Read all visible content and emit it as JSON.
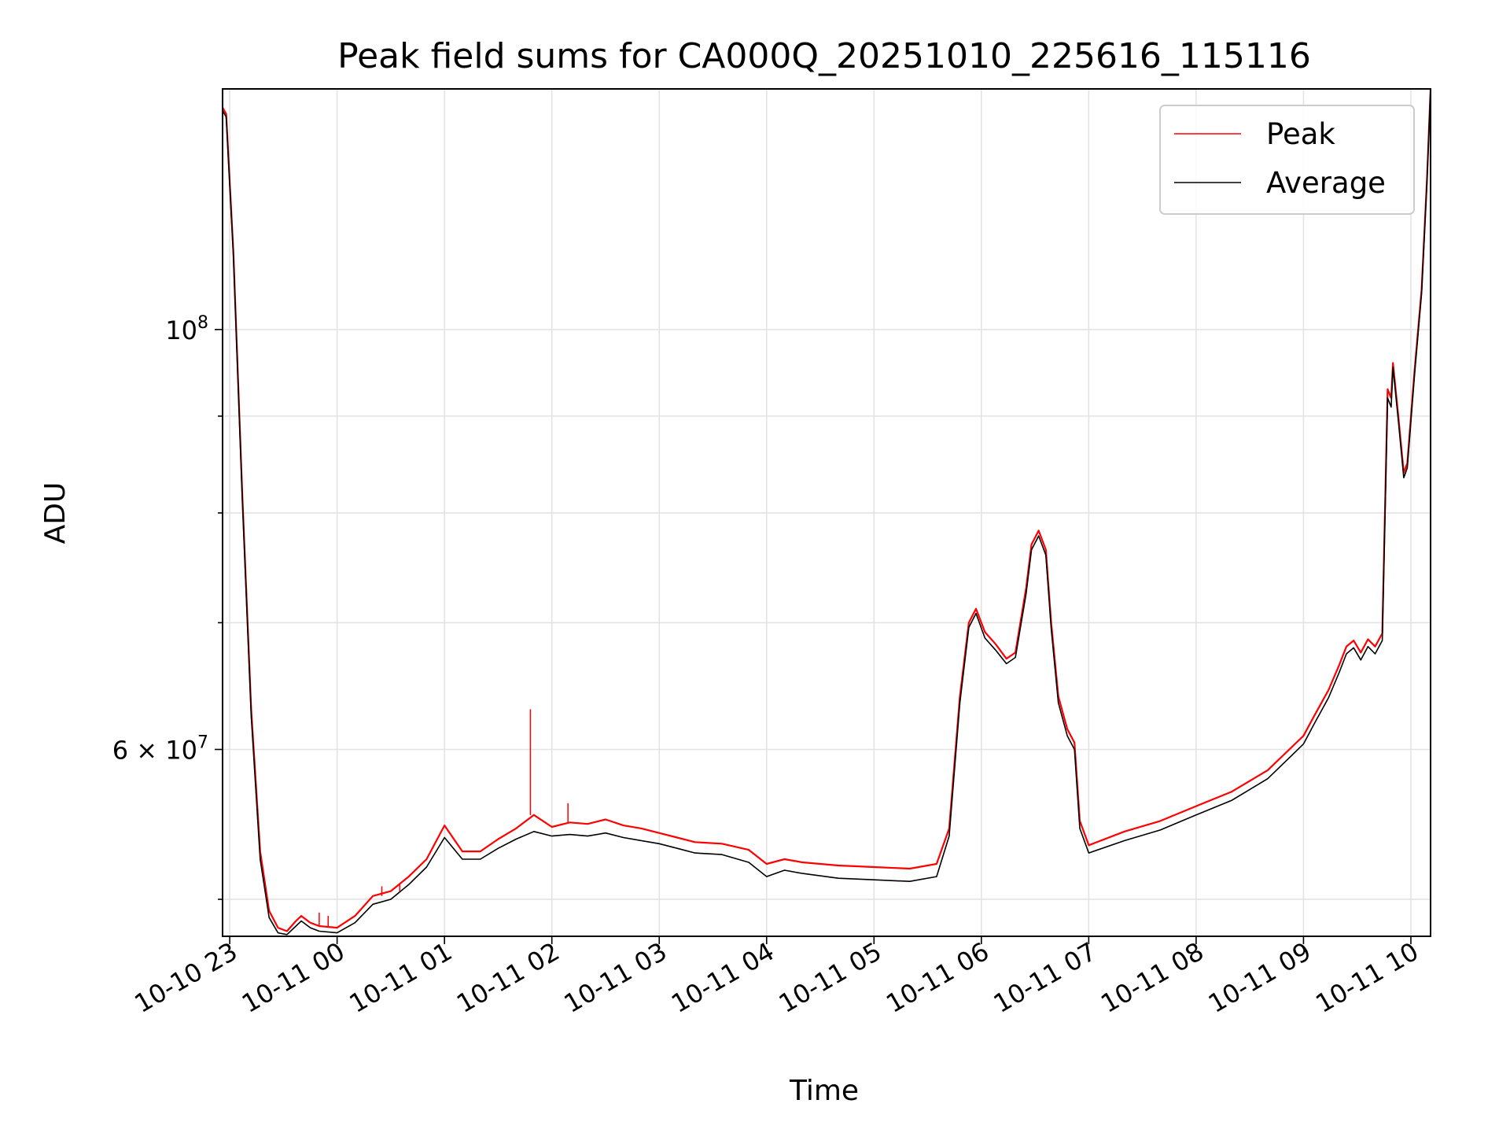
{
  "chart_data": {
    "type": "line",
    "title": "Peak field sums for CA000Q_20251010_225616_115116",
    "xlabel": "Time",
    "ylabel": "ADU",
    "y_scale": "log",
    "grid": true,
    "legend_position": "top-right",
    "x_range": [
      "2025-10-10 22:56",
      "2025-10-11 10:11"
    ],
    "y_range": [
      47800000,
      134000000
    ],
    "x_ticks": [
      {
        "t": "2025-10-10 23:00",
        "label": "10-10 23"
      },
      {
        "t": "2025-10-11 00:00",
        "label": "10-11 00"
      },
      {
        "t": "2025-10-11 01:00",
        "label": "10-11 01"
      },
      {
        "t": "2025-10-11 02:00",
        "label": "10-11 02"
      },
      {
        "t": "2025-10-11 03:00",
        "label": "10-11 03"
      },
      {
        "t": "2025-10-11 04:00",
        "label": "10-11 04"
      },
      {
        "t": "2025-10-11 05:00",
        "label": "10-11 05"
      },
      {
        "t": "2025-10-11 06:00",
        "label": "10-11 06"
      },
      {
        "t": "2025-10-11 07:00",
        "label": "10-11 07"
      },
      {
        "t": "2025-10-11 08:00",
        "label": "10-11 08"
      },
      {
        "t": "2025-10-11 09:00",
        "label": "10-11 09"
      },
      {
        "t": "2025-10-11 10:00",
        "label": "10-11 10"
      }
    ],
    "y_major_ticks": [
      {
        "value": 60000000,
        "label": "6 × 10⁷",
        "base": "6 × 10",
        "exp": "7"
      },
      {
        "value": 100000000,
        "label": "10⁸",
        "base": "10",
        "exp": "8"
      }
    ],
    "y_minor_ticks": [
      50000000,
      70000000,
      80000000,
      90000000
    ],
    "series": [
      {
        "name": "Peak",
        "color": "#ff0000",
        "points": [
          [
            "2025-10-10 22:56",
            131000000
          ],
          [
            "2025-10-10 22:58",
            130000000
          ],
          [
            "2025-10-10 23:02",
            110000000
          ],
          [
            "2025-10-10 23:07",
            82000000
          ],
          [
            "2025-10-10 23:12",
            63000000
          ],
          [
            "2025-10-10 23:17",
            53000000
          ],
          [
            "2025-10-10 23:22",
            49300000
          ],
          [
            "2025-10-10 23:27",
            48300000
          ],
          [
            "2025-10-10 23:32",
            48100000
          ],
          [
            "2025-10-10 23:37",
            48700000
          ],
          [
            "2025-10-10 23:40",
            49000000
          ],
          [
            "2025-10-10 23:45",
            48600000
          ],
          [
            "2025-10-10 23:50",
            48400000
          ],
          [
            "2025-10-11 00:00",
            48300000
          ],
          [
            "2025-10-11 00:10",
            49000000
          ],
          [
            "2025-10-11 00:20",
            50200000
          ],
          [
            "2025-10-11 00:30",
            50500000
          ],
          [
            "2025-10-11 00:40",
            51400000
          ],
          [
            "2025-10-11 00:50",
            52500000
          ],
          [
            "2025-10-11 01:00",
            54700000
          ],
          [
            "2025-10-11 01:10",
            53000000
          ],
          [
            "2025-10-11 01:20",
            53000000
          ],
          [
            "2025-10-11 01:30",
            53800000
          ],
          [
            "2025-10-11 01:40",
            54500000
          ],
          [
            "2025-10-11 01:50",
            55400000
          ],
          [
            "2025-10-11 02:00",
            54600000
          ],
          [
            "2025-10-11 02:10",
            54900000
          ],
          [
            "2025-10-11 02:20",
            54800000
          ],
          [
            "2025-10-11 02:30",
            55100000
          ],
          [
            "2025-10-11 02:40",
            54700000
          ],
          [
            "2025-10-11 02:50",
            54500000
          ],
          [
            "2025-10-11 03:00",
            54200000
          ],
          [
            "2025-10-11 03:10",
            53900000
          ],
          [
            "2025-10-11 03:20",
            53600000
          ],
          [
            "2025-10-11 03:35",
            53500000
          ],
          [
            "2025-10-11 03:50",
            53100000
          ],
          [
            "2025-10-11 04:00",
            52200000
          ],
          [
            "2025-10-11 04:10",
            52500000
          ],
          [
            "2025-10-11 04:20",
            52300000
          ],
          [
            "2025-10-11 04:40",
            52100000
          ],
          [
            "2025-10-11 05:00",
            52000000
          ],
          [
            "2025-10-11 05:20",
            51900000
          ],
          [
            "2025-10-11 05:35",
            52200000
          ],
          [
            "2025-10-11 05:42",
            54500000
          ],
          [
            "2025-10-11 05:48",
            64000000
          ],
          [
            "2025-10-11 05:53",
            70000000
          ],
          [
            "2025-10-11 05:57",
            71200000
          ],
          [
            "2025-10-11 06:02",
            69200000
          ],
          [
            "2025-10-11 06:08",
            68200000
          ],
          [
            "2025-10-11 06:14",
            67000000
          ],
          [
            "2025-10-11 06:19",
            67500000
          ],
          [
            "2025-10-11 06:25",
            73000000
          ],
          [
            "2025-10-11 06:28",
            77000000
          ],
          [
            "2025-10-11 06:32",
            78300000
          ],
          [
            "2025-10-11 06:36",
            76500000
          ],
          [
            "2025-10-11 06:39",
            70000000
          ],
          [
            "2025-10-11 06:43",
            64000000
          ],
          [
            "2025-10-11 06:48",
            61500000
          ],
          [
            "2025-10-11 06:52",
            60500000
          ],
          [
            "2025-10-11 06:55",
            55000000
          ],
          [
            "2025-10-11 07:00",
            53400000
          ],
          [
            "2025-10-11 07:20",
            54300000
          ],
          [
            "2025-10-11 07:40",
            55000000
          ],
          [
            "2025-10-11 08:00",
            56000000
          ],
          [
            "2025-10-11 08:20",
            57000000
          ],
          [
            "2025-10-11 08:40",
            58500000
          ],
          [
            "2025-10-11 09:00",
            61000000
          ],
          [
            "2025-10-11 09:06",
            62500000
          ],
          [
            "2025-10-11 09:14",
            64500000
          ],
          [
            "2025-10-11 09:20",
            66500000
          ],
          [
            "2025-10-11 09:24",
            68000000
          ],
          [
            "2025-10-11 09:28",
            68500000
          ],
          [
            "2025-10-11 09:32",
            67500000
          ],
          [
            "2025-10-11 09:36",
            68600000
          ],
          [
            "2025-10-11 09:40",
            68000000
          ],
          [
            "2025-10-11 09:44",
            69100000
          ],
          [
            "2025-10-11 09:47",
            93000000
          ],
          [
            "2025-10-11 09:49",
            92000000
          ],
          [
            "2025-10-11 09:50",
            96000000
          ],
          [
            "2025-10-11 09:53",
            90000000
          ],
          [
            "2025-10-11 09:56",
            84000000
          ],
          [
            "2025-10-11 09:58",
            85000000
          ],
          [
            "2025-10-11 10:02",
            95000000
          ],
          [
            "2025-10-11 10:06",
            105000000
          ],
          [
            "2025-10-11 10:09",
            120000000
          ],
          [
            "2025-10-11 10:11",
            134000000
          ]
        ],
        "spikes": [
          [
            "2025-10-11 01:48",
            63000000
          ],
          [
            "2025-10-11 02:09",
            56200000
          ],
          [
            "2025-10-11 00:35",
            51000000
          ],
          [
            "2025-10-11 00:25",
            50800000
          ],
          [
            "2025-10-10 23:50",
            49200000
          ],
          [
            "2025-10-10 23:55",
            49000000
          ]
        ]
      },
      {
        "name": "Average",
        "color": "#000000",
        "points": [
          [
            "2025-10-10 22:56",
            130500000
          ],
          [
            "2025-10-10 22:58",
            129500000
          ],
          [
            "2025-10-10 23:02",
            109500000
          ],
          [
            "2025-10-10 23:07",
            81500000
          ],
          [
            "2025-10-10 23:12",
            62500000
          ],
          [
            "2025-10-10 23:17",
            52500000
          ],
          [
            "2025-10-10 23:22",
            48900000
          ],
          [
            "2025-10-10 23:27",
            48000000
          ],
          [
            "2025-10-10 23:32",
            47900000
          ],
          [
            "2025-10-10 23:37",
            48400000
          ],
          [
            "2025-10-10 23:40",
            48700000
          ],
          [
            "2025-10-10 23:45",
            48300000
          ],
          [
            "2025-10-10 23:50",
            48100000
          ],
          [
            "2025-10-11 00:00",
            48000000
          ],
          [
            "2025-10-11 00:10",
            48600000
          ],
          [
            "2025-10-11 00:20",
            49700000
          ],
          [
            "2025-10-11 00:30",
            50000000
          ],
          [
            "2025-10-11 00:40",
            50900000
          ],
          [
            "2025-10-11 00:50",
            52000000
          ],
          [
            "2025-10-11 01:00",
            53900000
          ],
          [
            "2025-10-11 01:10",
            52500000
          ],
          [
            "2025-10-11 01:20",
            52500000
          ],
          [
            "2025-10-11 01:30",
            53200000
          ],
          [
            "2025-10-11 01:40",
            53800000
          ],
          [
            "2025-10-11 01:50",
            54300000
          ],
          [
            "2025-10-11 02:00",
            54000000
          ],
          [
            "2025-10-11 02:10",
            54100000
          ],
          [
            "2025-10-11 02:20",
            54000000
          ],
          [
            "2025-10-11 02:30",
            54200000
          ],
          [
            "2025-10-11 02:40",
            53900000
          ],
          [
            "2025-10-11 02:50",
            53700000
          ],
          [
            "2025-10-11 03:00",
            53500000
          ],
          [
            "2025-10-11 03:10",
            53200000
          ],
          [
            "2025-10-11 03:20",
            52900000
          ],
          [
            "2025-10-11 03:35",
            52800000
          ],
          [
            "2025-10-11 03:50",
            52300000
          ],
          [
            "2025-10-11 04:00",
            51400000
          ],
          [
            "2025-10-11 04:10",
            51800000
          ],
          [
            "2025-10-11 04:20",
            51600000
          ],
          [
            "2025-10-11 04:40",
            51300000
          ],
          [
            "2025-10-11 05:00",
            51200000
          ],
          [
            "2025-10-11 05:20",
            51100000
          ],
          [
            "2025-10-11 05:35",
            51400000
          ],
          [
            "2025-10-11 05:42",
            54000000
          ],
          [
            "2025-10-11 05:48",
            63500000
          ],
          [
            "2025-10-11 05:53",
            69600000
          ],
          [
            "2025-10-11 05:57",
            70800000
          ],
          [
            "2025-10-11 06:02",
            68700000
          ],
          [
            "2025-10-11 06:08",
            67700000
          ],
          [
            "2025-10-11 06:14",
            66600000
          ],
          [
            "2025-10-11 06:19",
            67100000
          ],
          [
            "2025-10-11 06:25",
            72500000
          ],
          [
            "2025-10-11 06:28",
            76500000
          ],
          [
            "2025-10-11 06:32",
            77800000
          ],
          [
            "2025-10-11 06:36",
            76000000
          ],
          [
            "2025-10-11 06:39",
            69500000
          ],
          [
            "2025-10-11 06:43",
            63500000
          ],
          [
            "2025-10-11 06:48",
            61000000
          ],
          [
            "2025-10-11 06:52",
            60000000
          ],
          [
            "2025-10-11 06:55",
            54500000
          ],
          [
            "2025-10-11 07:00",
            52900000
          ],
          [
            "2025-10-11 07:20",
            53700000
          ],
          [
            "2025-10-11 07:40",
            54400000
          ],
          [
            "2025-10-11 08:00",
            55400000
          ],
          [
            "2025-10-11 08:20",
            56400000
          ],
          [
            "2025-10-11 08:40",
            57900000
          ],
          [
            "2025-10-11 09:00",
            60400000
          ],
          [
            "2025-10-11 09:06",
            61900000
          ],
          [
            "2025-10-11 09:14",
            63900000
          ],
          [
            "2025-10-11 09:20",
            65900000
          ],
          [
            "2025-10-11 09:24",
            67400000
          ],
          [
            "2025-10-11 09:28",
            67900000
          ],
          [
            "2025-10-11 09:32",
            66900000
          ],
          [
            "2025-10-11 09:36",
            68000000
          ],
          [
            "2025-10-11 09:40",
            67400000
          ],
          [
            "2025-10-11 09:44",
            68500000
          ],
          [
            "2025-10-11 09:47",
            92000000
          ],
          [
            "2025-10-11 09:49",
            91000000
          ],
          [
            "2025-10-11 09:50",
            95500000
          ],
          [
            "2025-10-11 09:53",
            89500000
          ],
          [
            "2025-10-11 09:56",
            83500000
          ],
          [
            "2025-10-11 09:58",
            84500000
          ],
          [
            "2025-10-11 10:02",
            94500000
          ],
          [
            "2025-10-11 10:06",
            104500000
          ],
          [
            "2025-10-11 10:09",
            119500000
          ],
          [
            "2025-10-11 10:11",
            134000000
          ]
        ]
      }
    ]
  }
}
